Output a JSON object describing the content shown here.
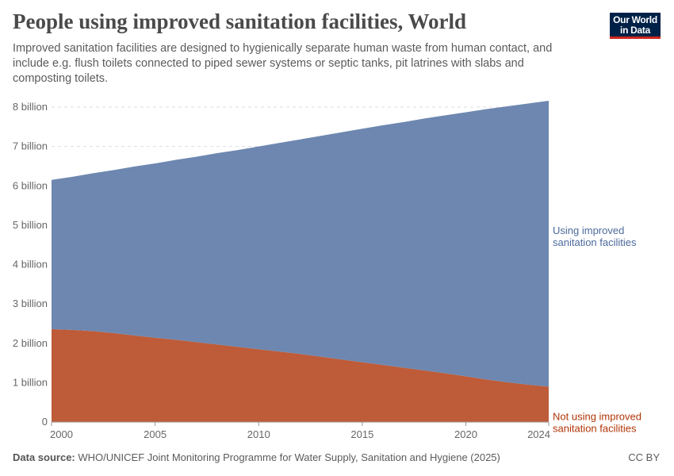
{
  "header": {
    "title": "People using improved sanitation facilities, World",
    "subtitle": "Improved sanitation facilities are designed to hygienically separate human waste from human contact, and include e.g. flush toilets connected to piped sewer systems or septic tanks, pit latrines with slabs and composting toilets.",
    "logo": "Our World in Data"
  },
  "footer": {
    "source_label": "Data source:",
    "source": "WHO/UNICEF Joint Monitoring Programme for Water Supply, Sanitation and Hygiene (2025)",
    "license": "CC BY"
  },
  "chart_data": {
    "type": "area",
    "stacked": true,
    "x": [
      2000,
      2001,
      2002,
      2003,
      2004,
      2005,
      2006,
      2007,
      2008,
      2009,
      2010,
      2011,
      2012,
      2013,
      2014,
      2015,
      2016,
      2017,
      2018,
      2019,
      2020,
      2021,
      2022,
      2023,
      2024
    ],
    "series": [
      {
        "name": "Not using improved sanitation facilities",
        "color": "#be5b38",
        "label_color": "#b13507",
        "values": [
          2.36,
          2.34,
          2.31,
          2.26,
          2.2,
          2.14,
          2.09,
          2.03,
          1.97,
          1.91,
          1.85,
          1.79,
          1.73,
          1.66,
          1.59,
          1.52,
          1.45,
          1.38,
          1.31,
          1.24,
          1.16,
          1.08,
          1.01,
          0.95,
          0.9
        ]
      },
      {
        "name": "Using improved sanitation facilities",
        "color": "#6d87b0",
        "label_color": "#4c6a9c",
        "values": [
          3.79,
          3.89,
          4.01,
          4.14,
          4.29,
          4.43,
          4.57,
          4.71,
          4.86,
          5.0,
          5.15,
          5.3,
          5.45,
          5.61,
          5.77,
          5.93,
          6.09,
          6.24,
          6.4,
          6.55,
          6.71,
          6.87,
          7.01,
          7.14,
          7.26
        ]
      }
    ],
    "unit": "billion",
    "ylim": [
      0,
      8
    ],
    "yticks": [
      0,
      1,
      2,
      3,
      4,
      5,
      6,
      7,
      8
    ],
    "ytick_labels": [
      "0",
      "1 billion",
      "2 billion",
      "3 billion",
      "4 billion",
      "5 billion",
      "6 billion",
      "7 billion",
      "8 billion"
    ],
    "xticks": [
      2000,
      2005,
      2010,
      2015,
      2020,
      2024
    ],
    "xtick_labels": [
      "2000",
      "2005",
      "2010",
      "2015",
      "2020",
      "2024"
    ],
    "grid": "horizontal dashed",
    "legend": "inline-right"
  }
}
